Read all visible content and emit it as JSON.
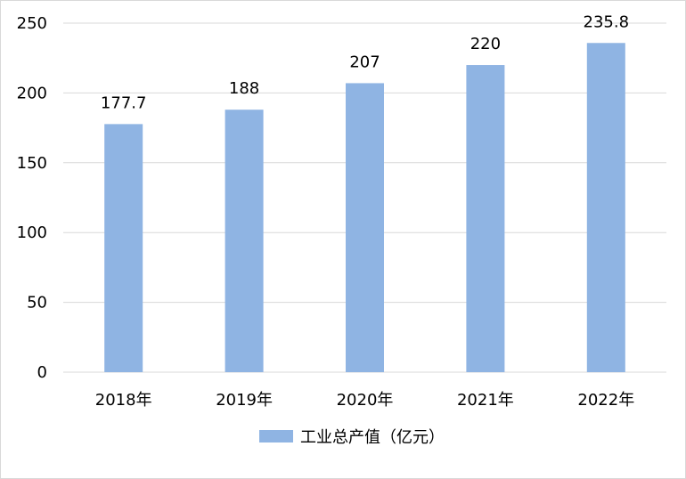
{
  "chart_data": {
    "type": "bar",
    "categories": [
      "2018年",
      "2019年",
      "2020年",
      "2021年",
      "2022年"
    ],
    "series": [
      {
        "name": "工业总产值（亿元）",
        "values": [
          177.7,
          188,
          207,
          220,
          235.8
        ],
        "data_labels": [
          "177.7",
          "188",
          "207",
          "220",
          "235.8"
        ],
        "color": "#8fb4e3"
      }
    ],
    "yticks": [
      "0",
      "50",
      "100",
      "150",
      "200",
      "250"
    ],
    "ylim": [
      0,
      250
    ],
    "grid": true,
    "legend_position": "bottom",
    "gridline_color": "#d9d9d9"
  }
}
